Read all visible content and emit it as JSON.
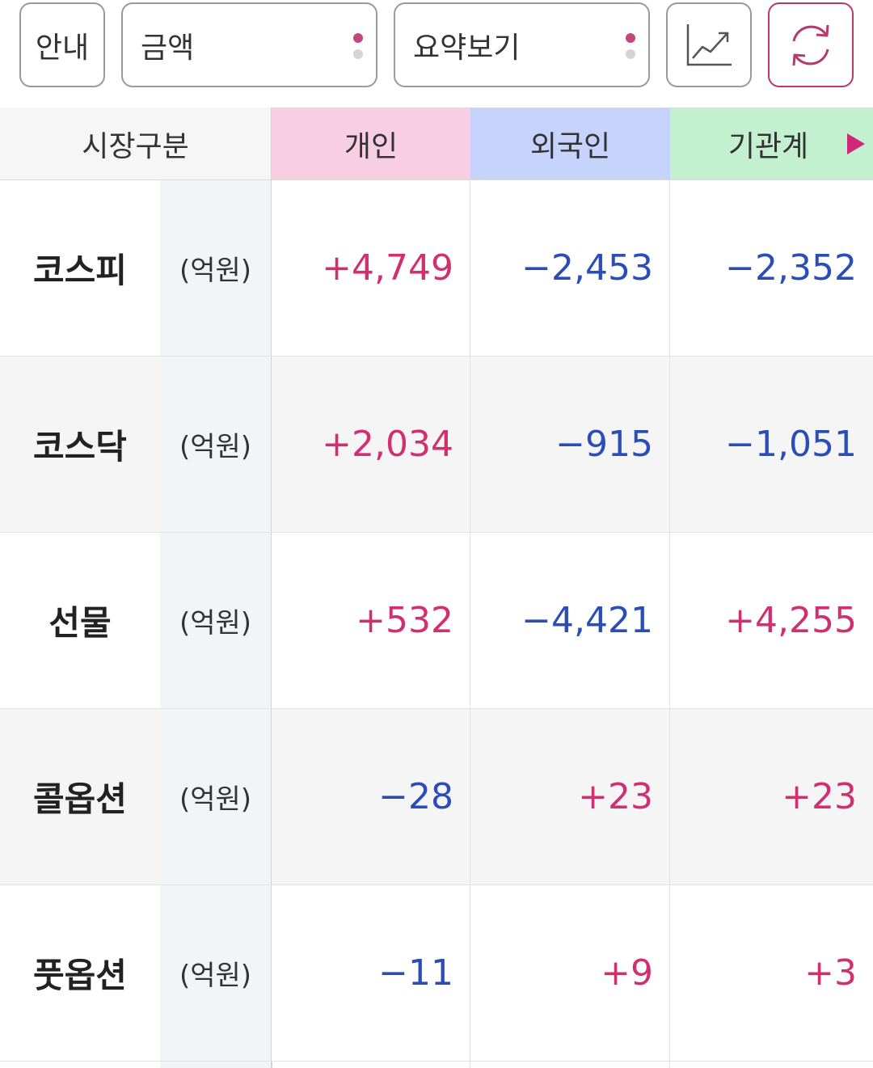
{
  "toolbar": {
    "guide_label": "안내",
    "amount_select": "금액",
    "summary_select": "요약보기",
    "chart_icon": "line-chart-icon",
    "refresh_icon": "refresh-icon"
  },
  "colors": {
    "positive": "#d0306f",
    "negative": "#2a4db8",
    "individual_header": "#f8cfe2",
    "foreign_header": "#c6d3fd",
    "institution_header": "#c3f1cf",
    "accent": "#b5396b"
  },
  "header": {
    "market": "시장구분",
    "individual": "개인",
    "foreign": "외국인",
    "institution": "기관계",
    "next_icon": "play-arrow-icon"
  },
  "rows": [
    {
      "name": "코스피",
      "unit": "(억원)",
      "individual": "+4,749",
      "foreign": "−2,453",
      "institution": "−2,352"
    },
    {
      "name": "코스닥",
      "unit": "(억원)",
      "individual": "+2,034",
      "foreign": "−915",
      "institution": "−1,051"
    },
    {
      "name": "선물",
      "unit": "(억원)",
      "individual": "+532",
      "foreign": "−4,421",
      "institution": "+4,255"
    },
    {
      "name": "콜옵션",
      "unit": "(억원)",
      "individual": "−28",
      "foreign": "+23",
      "institution": "+23"
    },
    {
      "name": "풋옵션",
      "unit": "(억원)",
      "individual": "−11",
      "foreign": "+9",
      "institution": "+3"
    }
  ]
}
